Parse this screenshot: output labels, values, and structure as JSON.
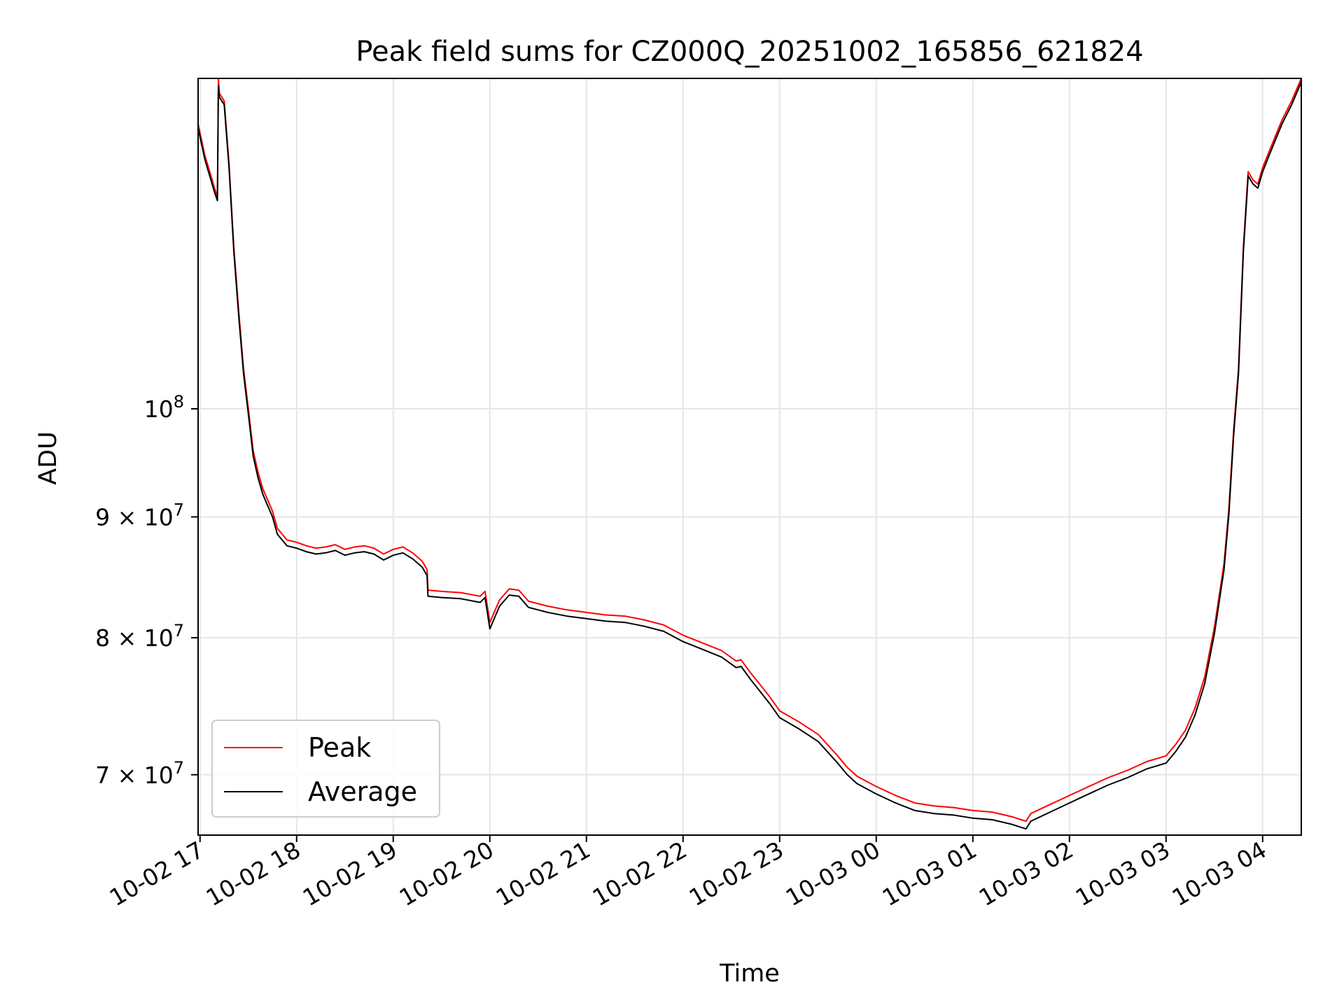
{
  "chart_data": {
    "type": "line",
    "title": "Peak field sums for CZ000Q_20251002_165856_621824",
    "xlabel": "Time",
    "ylabel": "ADU",
    "yscale": "log",
    "ylim": [
      66000000,
      138000000
    ],
    "xlim": [
      -0.02,
      11.4
    ],
    "grid": true,
    "legend_location": "lower-left",
    "x_ticks": [
      {
        "value": 0,
        "label": "10-02 17"
      },
      {
        "value": 1,
        "label": "10-02 18"
      },
      {
        "value": 2,
        "label": "10-02 19"
      },
      {
        "value": 3,
        "label": "10-02 20"
      },
      {
        "value": 4,
        "label": "10-02 21"
      },
      {
        "value": 5,
        "label": "10-02 22"
      },
      {
        "value": 6,
        "label": "10-02 23"
      },
      {
        "value": 7,
        "label": "10-03 00"
      },
      {
        "value": 8,
        "label": "10-03 01"
      },
      {
        "value": 9,
        "label": "10-03 02"
      },
      {
        "value": 10,
        "label": "10-03 03"
      },
      {
        "value": 11,
        "label": "10-03 04"
      }
    ],
    "y_ticks": [
      {
        "value": 100000000,
        "base": "10",
        "exp": "8"
      },
      {
        "value": 90000000,
        "base": "9 × 10",
        "exp": "7"
      },
      {
        "value": 80000000,
        "base": "8 × 10",
        "exp": "7"
      },
      {
        "value": 70000000,
        "base": "7 × 10",
        "exp": "7"
      }
    ],
    "x_unit": "hours since 10-02 17:00",
    "series": [
      {
        "name": "Peak",
        "color": "#ff0000",
        "x": [
          -0.02,
          0.05,
          0.1,
          0.15,
          0.18,
          0.19,
          0.2,
          0.25,
          0.3,
          0.35,
          0.4,
          0.45,
          0.5,
          0.55,
          0.6,
          0.65,
          0.7,
          0.75,
          0.8,
          0.9,
          1.0,
          1.1,
          1.2,
          1.3,
          1.4,
          1.5,
          1.6,
          1.7,
          1.8,
          1.9,
          2.0,
          2.1,
          2.2,
          2.3,
          2.35,
          2.36,
          2.5,
          2.7,
          2.9,
          2.95,
          3.0,
          3.1,
          3.2,
          3.3,
          3.4,
          3.6,
          3.8,
          4.0,
          4.2,
          4.4,
          4.6,
          4.8,
          5.0,
          5.2,
          5.4,
          5.55,
          5.6,
          5.7,
          5.8,
          5.9,
          6.0,
          6.2,
          6.4,
          6.6,
          6.7,
          6.8,
          7.0,
          7.2,
          7.4,
          7.6,
          7.8,
          8.0,
          8.2,
          8.4,
          8.5,
          8.55,
          8.6,
          8.8,
          9.0,
          9.2,
          9.4,
          9.6,
          9.8,
          10.0,
          10.1,
          10.2,
          10.3,
          10.4,
          10.5,
          10.6,
          10.65,
          10.7,
          10.75,
          10.8,
          10.85,
          10.9,
          10.95,
          11.0,
          11.05,
          11.1,
          11.15,
          11.2,
          11.3,
          11.4
        ],
        "values": [
          132000000,
          128000000,
          126000000,
          124000000,
          123000000,
          138000000,
          136000000,
          135000000,
          127000000,
          117000000,
          110000000,
          104000000,
          100000000,
          96000000,
          94000000,
          92500000,
          91500000,
          90500000,
          89000000,
          88000000,
          87800000,
          87500000,
          87300000,
          87400000,
          87600000,
          87200000,
          87400000,
          87500000,
          87300000,
          86800000,
          87200000,
          87400000,
          86900000,
          86200000,
          85500000,
          83800000,
          83700000,
          83600000,
          83300000,
          83700000,
          81200000,
          83000000,
          83900000,
          83800000,
          82900000,
          82500000,
          82200000,
          82000000,
          81800000,
          81700000,
          81400000,
          81000000,
          80200000,
          79600000,
          79000000,
          78200000,
          78300000,
          77300000,
          76400000,
          75500000,
          74500000,
          73700000,
          72800000,
          71300000,
          70500000,
          69900000,
          69200000,
          68600000,
          68100000,
          67900000,
          67800000,
          67600000,
          67500000,
          67200000,
          67000000,
          66900000,
          67400000,
          68000000,
          68600000,
          69200000,
          69800000,
          70300000,
          70900000,
          71300000,
          72100000,
          73100000,
          74700000,
          77000000,
          80800000,
          86000000,
          90700000,
          98000000,
          104000000,
          117000000,
          126000000,
          125000000,
          124500000,
          126500000,
          128000000,
          129500000,
          131000000,
          132500000,
          135000000,
          138000000
        ]
      },
      {
        "name": "Average",
        "color": "#000000",
        "x": [
          -0.02,
          0.05,
          0.1,
          0.15,
          0.18,
          0.19,
          0.2,
          0.25,
          0.3,
          0.35,
          0.4,
          0.45,
          0.5,
          0.55,
          0.6,
          0.65,
          0.7,
          0.75,
          0.8,
          0.9,
          1.0,
          1.1,
          1.2,
          1.3,
          1.4,
          1.5,
          1.6,
          1.7,
          1.8,
          1.9,
          2.0,
          2.1,
          2.2,
          2.3,
          2.35,
          2.36,
          2.5,
          2.7,
          2.9,
          2.95,
          3.0,
          3.1,
          3.2,
          3.3,
          3.4,
          3.6,
          3.8,
          4.0,
          4.2,
          4.4,
          4.6,
          4.8,
          5.0,
          5.2,
          5.4,
          5.55,
          5.6,
          5.7,
          5.8,
          5.9,
          6.0,
          6.2,
          6.4,
          6.6,
          6.7,
          6.8,
          7.0,
          7.2,
          7.4,
          7.6,
          7.8,
          8.0,
          8.2,
          8.4,
          8.5,
          8.55,
          8.6,
          8.8,
          9.0,
          9.2,
          9.4,
          9.6,
          9.8,
          10.0,
          10.1,
          10.2,
          10.3,
          10.4,
          10.5,
          10.6,
          10.65,
          10.7,
          10.75,
          10.8,
          10.85,
          10.9,
          10.95,
          11.0,
          11.05,
          11.1,
          11.15,
          11.2,
          11.3,
          11.4
        ],
        "values": [
          131500000,
          127500000,
          125500000,
          123500000,
          122500000,
          137000000,
          135500000,
          134500000,
          126500000,
          116500000,
          109500000,
          103500000,
          99500000,
          95500000,
          93500000,
          92000000,
          91000000,
          90000000,
          88500000,
          87500000,
          87300000,
          87000000,
          86800000,
          86900000,
          87100000,
          86700000,
          86900000,
          87000000,
          86800000,
          86300000,
          86700000,
          86900000,
          86400000,
          85700000,
          85000000,
          83300000,
          83200000,
          83100000,
          82800000,
          83200000,
          80700000,
          82500000,
          83400000,
          83300000,
          82400000,
          82000000,
          81700000,
          81500000,
          81300000,
          81200000,
          80900000,
          80500000,
          79700000,
          79100000,
          78500000,
          77700000,
          77800000,
          76800000,
          75900000,
          75000000,
          74000000,
          73200000,
          72300000,
          70800000,
          70000000,
          69400000,
          68700000,
          68100000,
          67600000,
          67400000,
          67300000,
          67100000,
          67000000,
          66700000,
          66500000,
          66400000,
          66900000,
          67500000,
          68100000,
          68700000,
          69300000,
          69800000,
          70400000,
          70800000,
          71600000,
          72600000,
          74200000,
          76500000,
          80300000,
          85500000,
          90200000,
          97500000,
          103500000,
          116500000,
          125500000,
          124500000,
          124000000,
          126000000,
          127500000,
          129000000,
          130500000,
          132000000,
          134500000,
          137500000
        ]
      }
    ]
  }
}
